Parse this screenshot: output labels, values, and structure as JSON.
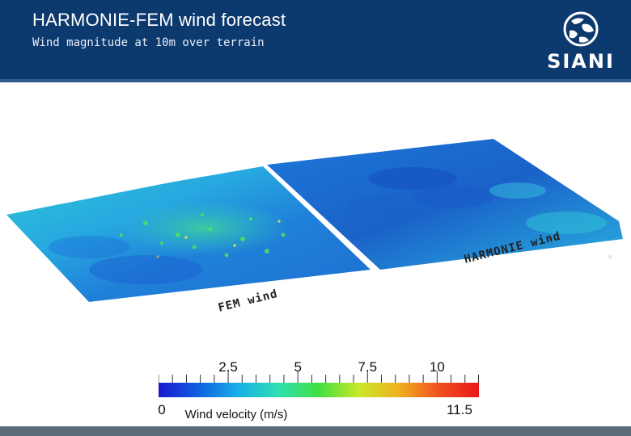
{
  "header": {
    "title": "HARMONIE-FEM wind forecast",
    "subtitle": "Wind magnitude at 10m over terrain",
    "logo_text": "SIANI"
  },
  "panels": {
    "harmonie_label": "HARMONIE wind",
    "fem_label": "FEM wind"
  },
  "colorbar": {
    "title": "Wind velocity (m/s)",
    "min": 0,
    "max": 11.5,
    "min_label": "0",
    "max_label": "11.5",
    "major_ticks": [
      {
        "value": 2.5,
        "label": "2.5"
      },
      {
        "value": 5,
        "label": "5"
      },
      {
        "value": 7.5,
        "label": "7.5"
      },
      {
        "value": 10,
        "label": "10"
      }
    ],
    "colors": [
      "#1a1acc",
      "#1060e0",
      "#18b0e8",
      "#2ee0b0",
      "#40e040",
      "#c8e828",
      "#f0b020",
      "#f05020",
      "#e8181a"
    ]
  },
  "colors": {
    "header_bg": "#0d3a6e",
    "footer_bg": "#5d6b7a"
  }
}
